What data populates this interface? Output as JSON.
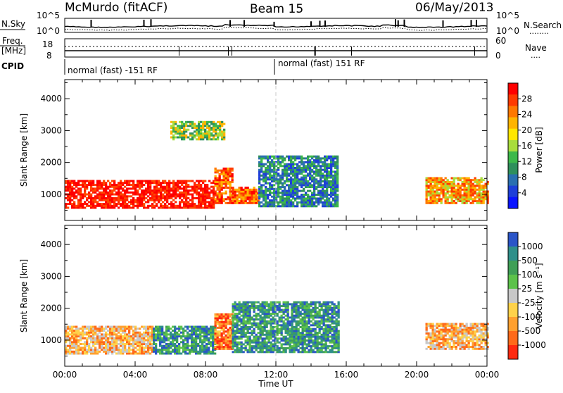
{
  "header": {
    "station": "McMurdo (fitACF)",
    "beam": "Beam 15",
    "date": "06/May/2013"
  },
  "top_panels": {
    "left_sky": "N.Sky",
    "left_freq": "Freq.",
    "left_freq_unit": "[MHz]",
    "left_cpid": "CPID",
    "right_search": "N.Search",
    "right_search_line": "........",
    "right_nave": "Nave",
    "right_nave_line": "....",
    "noise_tick_top_left": "10^5",
    "noise_tick_bottom_left": "10^0",
    "noise_tick_top_right": "10^5",
    "noise_tick_bottom_right": "10^0",
    "freq_tick_top": "18",
    "freq_tick_bottom": "8",
    "nave_tick_top": "60",
    "nave_tick_bottom": "0",
    "cpid_segments": [
      "normal (fast) -151 RF",
      "normal (fast) 151 RF"
    ]
  },
  "power_colorbar": {
    "label": "Power [dB]",
    "ticks": [
      "28",
      "24",
      "20",
      "16",
      "12",
      "8",
      "4"
    ],
    "colors": [
      "#ff0000",
      "#ff3a00",
      "#ff7800",
      "#ffb400",
      "#ffe600",
      "#a8dc3c",
      "#3cb84a",
      "#2f8f5c",
      "#2a6fb0",
      "#1e3fd8",
      "#0a14ff"
    ]
  },
  "velocity_colorbar": {
    "label": "Velocity [m s⁻¹]",
    "ticks": [
      "1000",
      "500",
      "100",
      "25",
      "-25",
      "-100",
      "-500",
      "-1000"
    ],
    "colors": [
      "#2a55c8",
      "#2f8f8a",
      "#3f9f56",
      "#5cc24a",
      "#c8c8c8",
      "#ffd24a",
      "#ffa030",
      "#ff6a1a",
      "#ff2a10"
    ]
  },
  "chart_data": [
    {
      "type": "heatmap",
      "title": "",
      "xlabel": "",
      "ylabel": "Slant Range [km]",
      "x_ticks": [
        "00:00",
        "04:00",
        "08:00",
        "12:00",
        "16:00",
        "20:00",
        "00:00"
      ],
      "y_ticks": [
        "1000",
        "2000",
        "3000",
        "4000"
      ],
      "ylim": [
        180,
        4600
      ],
      "xlim_hours": [
        0,
        24
      ],
      "colorbar": "Power [dB]",
      "echo_regions": [
        {
          "t0": 0.0,
          "t1": 8.5,
          "r0": 550,
          "r1": 1450,
          "level": "28+"
        },
        {
          "t0": 8.5,
          "t1": 9.5,
          "r0": 700,
          "r1": 1800,
          "level": "28"
        },
        {
          "t0": 9.5,
          "t1": 11.0,
          "r0": 700,
          "r1": 1200,
          "level": "20-28"
        },
        {
          "t0": 11.0,
          "t1": 15.5,
          "r0": 600,
          "r1": 2200,
          "level": "4-12"
        },
        {
          "t0": 6.0,
          "t1": 9.0,
          "r0": 2700,
          "r1": 3300,
          "level": "8-20"
        },
        {
          "t0": 20.5,
          "t1": 24.0,
          "r0": 700,
          "r1": 1500,
          "level": "16-28"
        }
      ]
    },
    {
      "type": "heatmap",
      "title": "",
      "xlabel": "Time UT",
      "ylabel": "Slant Range [km]",
      "x_ticks": [
        "00:00",
        "04:00",
        "08:00",
        "12:00",
        "16:00",
        "20:00",
        "00:00"
      ],
      "y_ticks": [
        "1000",
        "2000",
        "3000",
        "4000"
      ],
      "ylim": [
        180,
        4600
      ],
      "xlim_hours": [
        0,
        24
      ],
      "colorbar": "Velocity [m s⁻¹]",
      "echo_regions": [
        {
          "t0": 0.0,
          "t1": 5.0,
          "r0": 550,
          "r1": 1450,
          "level": "-100 to -500"
        },
        {
          "t0": 5.0,
          "t1": 8.5,
          "r0": 550,
          "r1": 1450,
          "level": "25 to 500"
        },
        {
          "t0": 8.5,
          "t1": 9.5,
          "r0": 700,
          "r1": 1800,
          "level": "-500"
        },
        {
          "t0": 9.5,
          "t1": 15.5,
          "r0": 600,
          "r1": 2200,
          "level": "100 to 500"
        },
        {
          "t0": 20.5,
          "t1": 24.0,
          "r0": 700,
          "r1": 1500,
          "level": "-100 to -500"
        }
      ]
    }
  ]
}
